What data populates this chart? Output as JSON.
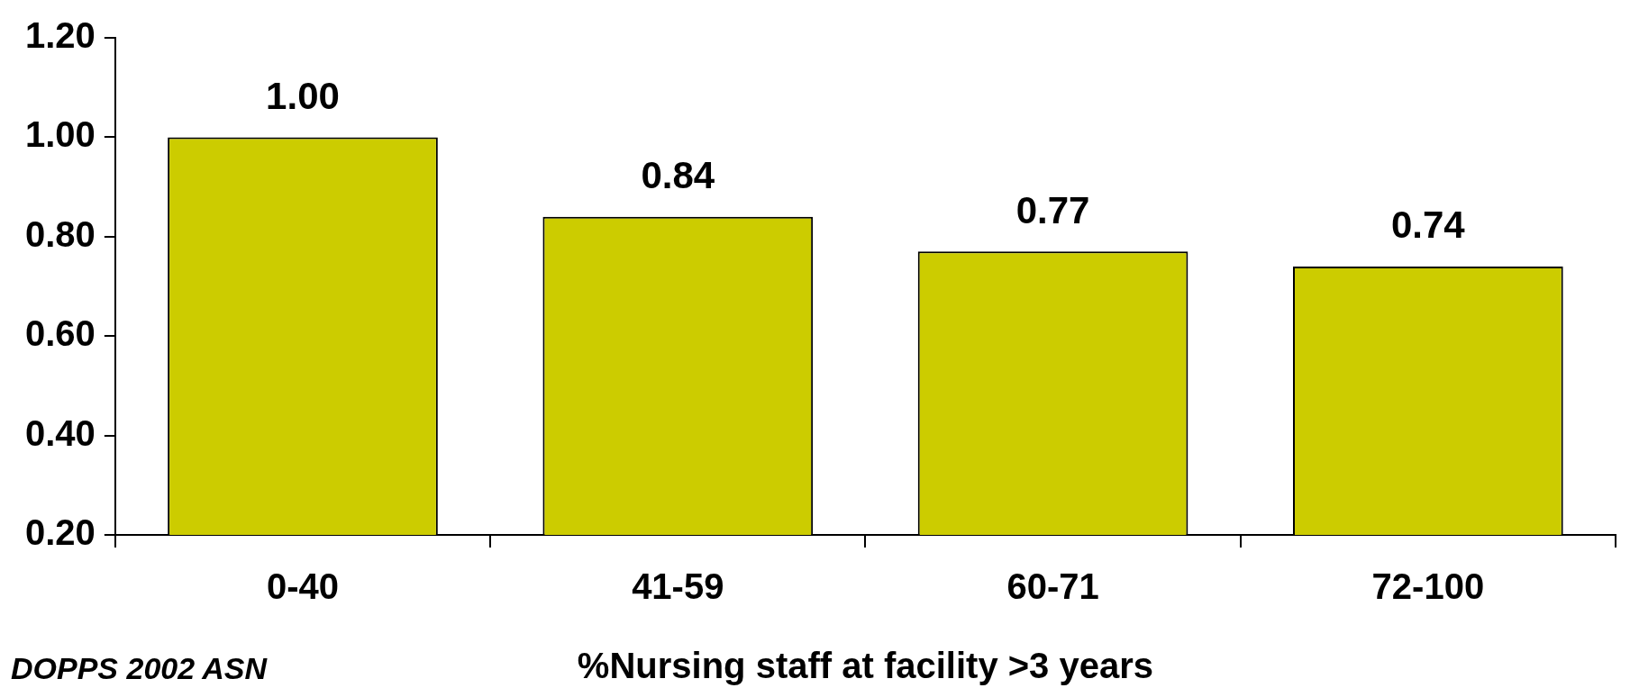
{
  "chart_data": {
    "type": "bar",
    "xlabel": "%Nursing staff at facility >3 years",
    "categories": [
      "0-40",
      "41-59",
      "60-71",
      "72-100"
    ],
    "values": [
      1.0,
      0.84,
      0.77,
      0.74
    ],
    "value_labels": [
      "1.00",
      "0.84",
      "0.77",
      "0.74"
    ],
    "color": "#cccc00",
    "ylim": [
      0.2,
      1.2
    ],
    "yticks": [
      {
        "value": 0.2,
        "label": "0.20"
      },
      {
        "value": 0.4,
        "label": "0.40"
      },
      {
        "value": 0.6,
        "label": "0.60"
      },
      {
        "value": 0.8,
        "label": "0.80"
      },
      {
        "value": 1.0,
        "label": "1.00"
      },
      {
        "value": 1.2,
        "label": "1.20"
      }
    ],
    "grid": false,
    "legend": false,
    "annotations": [
      "DOPPS 2002 ASN"
    ]
  }
}
